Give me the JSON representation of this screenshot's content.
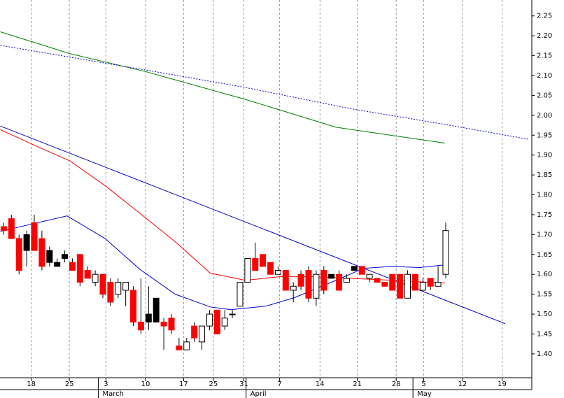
{
  "chart_data": {
    "type": "candlestick",
    "x": [
      0,
      1,
      2,
      3,
      4,
      5,
      6,
      7,
      8,
      9,
      10,
      11,
      12,
      13,
      14,
      15,
      16,
      17,
      18,
      19,
      20,
      21,
      22,
      23,
      24,
      25,
      26,
      27,
      28,
      29,
      30,
      31,
      32,
      33,
      34,
      35,
      36,
      37,
      38,
      39,
      40,
      41,
      42,
      43,
      44,
      45,
      46,
      47,
      48,
      49,
      50,
      51,
      52,
      53,
      54,
      55,
      56,
      57,
      58
    ],
    "open": [
      1.72,
      1.74,
      1.69,
      1.7,
      1.73,
      1.69,
      1.66,
      1.63,
      1.65,
      1.63,
      1.65,
      1.61,
      1.58,
      1.6,
      1.58,
      1.55,
      1.56,
      1.56,
      1.48,
      1.5,
      1.54,
      1.48,
      1.49,
      1.42,
      1.41,
      1.47,
      1.43,
      1.47,
      1.51,
      1.47,
      1.5,
      1.52,
      1.58,
      1.64,
      1.65,
      1.63,
      1.6,
      1.61,
      1.56,
      1.6,
      1.61,
      1.54,
      1.61,
      1.6,
      1.6,
      1.58,
      1.62,
      1.62,
      1.59,
      1.59,
      1.58,
      1.6,
      1.6,
      1.54,
      1.6,
      1.56,
      1.59,
      1.57,
      1.6
    ],
    "high": [
      1.73,
      1.75,
      1.7,
      1.71,
      1.75,
      1.71,
      1.67,
      1.64,
      1.66,
      1.64,
      1.65,
      1.62,
      1.61,
      1.6,
      1.59,
      1.59,
      1.58,
      1.57,
      1.59,
      1.57,
      1.54,
      1.49,
      1.5,
      1.44,
      1.44,
      1.48,
      1.47,
      1.51,
      1.51,
      1.51,
      1.51,
      1.58,
      1.64,
      1.68,
      1.65,
      1.63,
      1.62,
      1.61,
      1.58,
      1.61,
      1.62,
      1.61,
      1.62,
      1.6,
      1.61,
      1.6,
      1.62,
      1.62,
      1.6,
      1.59,
      1.58,
      1.6,
      1.6,
      1.61,
      1.6,
      1.59,
      1.59,
      1.62,
      1.73
    ],
    "low": [
      1.7,
      1.69,
      1.6,
      1.62,
      1.66,
      1.61,
      1.62,
      1.62,
      1.63,
      1.61,
      1.57,
      1.59,
      1.57,
      1.54,
      1.52,
      1.54,
      1.52,
      1.47,
      1.45,
      1.46,
      1.48,
      1.41,
      1.45,
      1.41,
      1.41,
      1.43,
      1.41,
      1.46,
      1.45,
      1.46,
      1.49,
      1.52,
      1.58,
      1.61,
      1.62,
      1.6,
      1.6,
      1.56,
      1.53,
      1.56,
      1.53,
      1.52,
      1.55,
      1.59,
      1.56,
      1.58,
      1.61,
      1.6,
      1.58,
      1.58,
      1.57,
      1.56,
      1.54,
      1.54,
      1.56,
      1.56,
      1.56,
      1.57,
      1.59
    ],
    "close": [
      1.71,
      1.69,
      1.61,
      1.66,
      1.66,
      1.62,
      1.63,
      1.62,
      1.64,
      1.61,
      1.58,
      1.59,
      1.6,
      1.55,
      1.53,
      1.58,
      1.58,
      1.48,
      1.46,
      1.48,
      1.48,
      1.47,
      1.46,
      1.41,
      1.43,
      1.44,
      1.47,
      1.5,
      1.45,
      1.49,
      1.5,
      1.58,
      1.64,
      1.61,
      1.62,
      1.6,
      1.61,
      1.56,
      1.57,
      1.57,
      1.54,
      1.6,
      1.56,
      1.59,
      1.56,
      1.59,
      1.61,
      1.6,
      1.6,
      1.58,
      1.57,
      1.56,
      1.54,
      1.6,
      1.56,
      1.58,
      1.57,
      1.58,
      1.71
    ],
    "colors": [
      "#ff0000",
      "#ff0000",
      "#ff0000",
      "#000000",
      "#ff0000",
      "#ff0000",
      "#000000",
      "#000000",
      "#000000",
      "#ff0000",
      "#ff0000",
      "#ff0000",
      "#ffffff",
      "#ff0000",
      "#ff0000",
      "#ffffff",
      "#ffffff",
      "#ff0000",
      "#ff0000",
      "#000000",
      "#000000",
      "#ff0000",
      "#ff0000",
      "#ff0000",
      "#ffffff",
      "#ff0000",
      "#ffffff",
      "#ffffff",
      "#ff0000",
      "#ffffff",
      "#ffffff",
      "#ffffff",
      "#ffffff",
      "#ff0000",
      "#ff0000",
      "#ff0000",
      "#ffffff",
      "#ff0000",
      "#ffffff",
      "#ff0000",
      "#ff0000",
      "#ffffff",
      "#ff0000",
      "#000000",
      "#ff0000",
      "#ffffff",
      "#000000",
      "#ff0000",
      "#ffffff",
      "#ff0000",
      "#ff0000",
      "#ff0000",
      "#ff0000",
      "#ffffff",
      "#ff0000",
      "#ffffff",
      "#ff0000",
      "#ffffff",
      "#ffffff"
    ],
    "lines": [
      {
        "color": "#008000",
        "style": "solid",
        "x": [
          -0.46,
          8.7,
          18.6,
          31.7,
          43.6,
          57.9
        ],
        "values": [
          2.21,
          2.155,
          2.11,
          2.04,
          1.97,
          1.93
        ]
      },
      {
        "color": "#0000cc",
        "style": "dotted",
        "x": [
          -0.46,
          18.6,
          31.7,
          45.4,
          57.9,
          68.8
        ],
        "values": [
          2.176,
          2.114,
          2.07,
          2.017,
          1.977,
          1.94
        ]
      },
      {
        "color": "#0000cc",
        "style": "solid",
        "x": [
          -0.46,
          65.8
        ],
        "values": [
          1.973,
          1.476
        ]
      },
      {
        "color": "#ff0000",
        "style": "solid",
        "x": [
          -0.46,
          4.1,
          8.7,
          13.3,
          17.9,
          22.5,
          27.1,
          31.7,
          36.2,
          40.8,
          45.4,
          51.0,
          57.9
        ],
        "values": [
          1.964,
          1.924,
          1.885,
          1.823,
          1.753,
          1.682,
          1.603,
          1.585,
          1.594,
          1.594,
          1.59,
          1.585,
          1.578
        ]
      },
      {
        "color": "#0000cc",
        "style": "solid",
        "x": [
          -0.46,
          8.3,
          13.3,
          17.9,
          22.5,
          27.1,
          29.8,
          34.4,
          38.1,
          43.6,
          47.2,
          50.9,
          54.6,
          57.9
        ],
        "values": [
          1.708,
          1.747,
          1.69,
          1.612,
          1.55,
          1.518,
          1.511,
          1.52,
          1.541,
          1.585,
          1.615,
          1.62,
          1.617,
          1.624
        ]
      }
    ],
    "xlim": [
      -0.5,
      69.3
    ],
    "ylim": [
      1.34,
      2.29
    ],
    "xticks": [
      {
        "value": 3.6,
        "label": "18"
      },
      {
        "value": 8.6,
        "label": "25"
      },
      {
        "value": 13.4,
        "label": "3"
      },
      {
        "value": 18.6,
        "label": "10"
      },
      {
        "value": 23.6,
        "label": "17"
      },
      {
        "value": 27.5,
        "label": "25"
      },
      {
        "value": 31.5,
        "label": "31"
      },
      {
        "value": 36.2,
        "label": "7"
      },
      {
        "value": 41.5,
        "label": "14"
      },
      {
        "value": 46.4,
        "label": "21"
      },
      {
        "value": 51.5,
        "label": "28"
      },
      {
        "value": 55.1,
        "label": "5"
      },
      {
        "value": 60.2,
        "label": "12"
      },
      {
        "value": 65.4,
        "label": "19"
      }
    ],
    "month_ticks": [
      {
        "value": 12.4,
        "label": "March"
      },
      {
        "value": 31.8,
        "label": "April"
      },
      {
        "value": 53.7,
        "label": "May"
      }
    ],
    "yticks": [
      {
        "value": 1.4,
        "label": "1.40"
      },
      {
        "value": 1.45,
        "label": "1.45"
      },
      {
        "value": 1.5,
        "label": "1.50"
      },
      {
        "value": 1.55,
        "label": "1.55"
      },
      {
        "value": 1.6,
        "label": "1.60"
      },
      {
        "value": 1.65,
        "label": "1.65"
      },
      {
        "value": 1.7,
        "label": "1.70"
      },
      {
        "value": 1.75,
        "label": "1.75"
      },
      {
        "value": 1.8,
        "label": "1.80"
      },
      {
        "value": 1.85,
        "label": "1.85"
      },
      {
        "value": 1.9,
        "label": "1.90"
      },
      {
        "value": 1.95,
        "label": "1.95"
      },
      {
        "value": 2.0,
        "label": "2.00"
      },
      {
        "value": 2.05,
        "label": "2.05"
      },
      {
        "value": 2.1,
        "label": "2.10"
      },
      {
        "value": 2.15,
        "label": "2.15"
      },
      {
        "value": 2.2,
        "label": "2.20"
      },
      {
        "value": 2.25,
        "label": "2.25"
      }
    ],
    "grid": true
  }
}
